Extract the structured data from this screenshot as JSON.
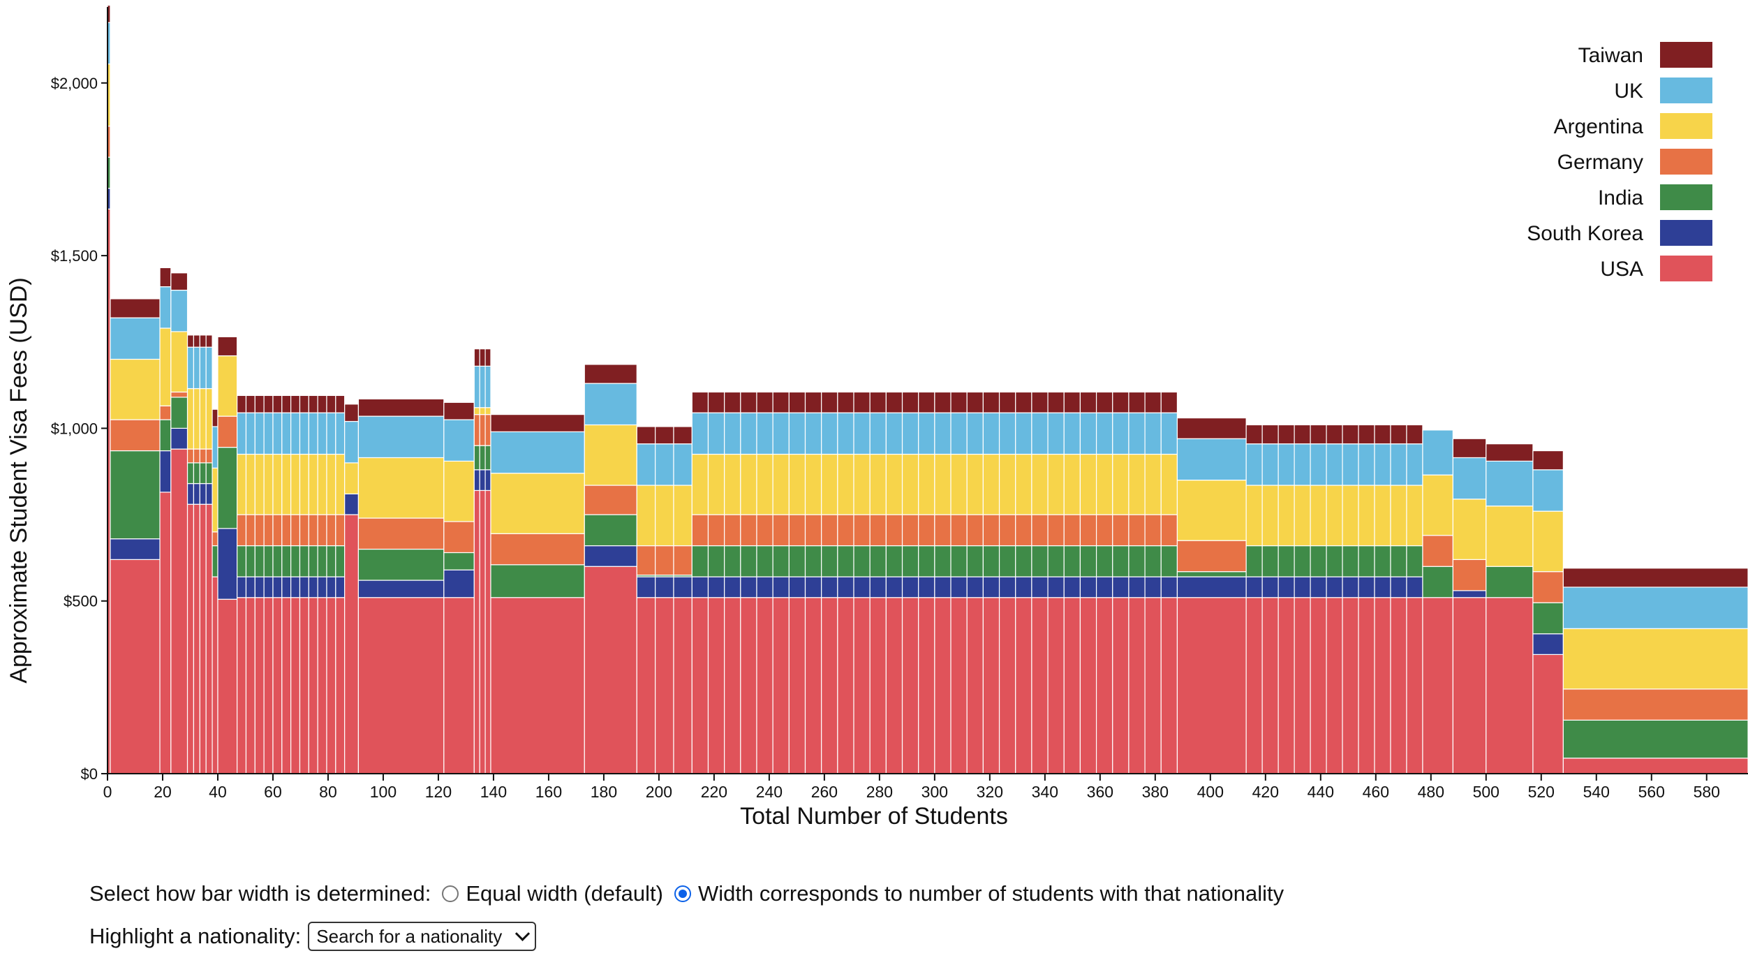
{
  "chart_data": {
    "type": "bar",
    "stacked": true,
    "variable_width": true,
    "xlabel": "Total Number of Students",
    "ylabel": "Approximate Student Visa Fees (USD)",
    "xlim": [
      0,
      595
    ],
    "ylim": [
      0,
      2220
    ],
    "xticks": [
      0,
      20,
      40,
      60,
      80,
      100,
      120,
      140,
      160,
      180,
      200,
      220,
      240,
      260,
      280,
      300,
      320,
      340,
      360,
      380,
      400,
      420,
      440,
      460,
      480,
      500,
      520,
      540,
      560,
      580
    ],
    "yticks": [
      0,
      500,
      1000,
      1500,
      2000
    ],
    "ytick_labels": [
      "$0",
      "$500",
      "$1,000",
      "$1,500",
      "$2,000"
    ],
    "legend_position": "top-right",
    "series_order": [
      "USA",
      "South Korea",
      "India",
      "Germany",
      "Argentina",
      "UK",
      "Taiwan"
    ],
    "colors": {
      "USA": "#e0535a",
      "South Korea": "#2e3f96",
      "India": "#3f8b48",
      "Germany": "#e77245",
      "Argentina": "#f7d44a",
      "UK": "#67bae0",
      "Taiwan": "#801f22"
    },
    "groups": [
      {
        "x0": 0,
        "x1": 1,
        "count": 1,
        "values": [
          1635,
          60,
          90,
          90,
          180,
          120,
          50
        ]
      },
      {
        "x0": 1,
        "x1": 19,
        "count": 1,
        "values": [
          620,
          60,
          255,
          90,
          175,
          120,
          55
        ]
      },
      {
        "x0": 19,
        "x1": 23,
        "count": 1,
        "values": [
          815,
          120,
          90,
          40,
          225,
          120,
          55
        ]
      },
      {
        "x0": 23,
        "x1": 29,
        "count": 1,
        "values": [
          940,
          60,
          90,
          15,
          175,
          120,
          50
        ]
      },
      {
        "x0": 29,
        "x1": 38,
        "count": 4,
        "values": [
          780,
          60,
          60,
          40,
          175,
          120,
          35
        ]
      },
      {
        "x0": 38,
        "x1": 40,
        "count": 1,
        "values": [
          570,
          0,
          90,
          40,
          185,
          120,
          50
        ]
      },
      {
        "x0": 40,
        "x1": 47,
        "count": 1,
        "values": [
          505,
          205,
          235,
          90,
          175,
          0,
          55
        ]
      },
      {
        "x0": 47,
        "x1": 86,
        "count": 12,
        "values": [
          510,
          60,
          90,
          90,
          175,
          120,
          50
        ]
      },
      {
        "x0": 86,
        "x1": 91,
        "count": 1,
        "values": [
          750,
          60,
          0,
          0,
          90,
          120,
          50
        ]
      },
      {
        "x0": 91,
        "x1": 122,
        "count": 1,
        "values": [
          510,
          50,
          90,
          90,
          175,
          120,
          50
        ]
      },
      {
        "x0": 122,
        "x1": 133,
        "count": 1,
        "values": [
          510,
          80,
          50,
          90,
          175,
          120,
          50
        ]
      },
      {
        "x0": 133,
        "x1": 139,
        "count": 3,
        "values": [
          820,
          60,
          70,
          90,
          20,
          120,
          50
        ]
      },
      {
        "x0": 139,
        "x1": 173,
        "count": 1,
        "values": [
          510,
          0,
          95,
          90,
          175,
          120,
          50
        ]
      },
      {
        "x0": 173,
        "x1": 192,
        "count": 1,
        "values": [
          600,
          60,
          90,
          85,
          175,
          120,
          55
        ]
      },
      {
        "x0": 192,
        "x1": 212,
        "count": 3,
        "values": [
          510,
          60,
          5,
          85,
          175,
          120,
          50
        ]
      },
      {
        "x0": 212,
        "x1": 388,
        "count": 30,
        "values": [
          510,
          60,
          90,
          90,
          175,
          120,
          60
        ]
      },
      {
        "x0": 388,
        "x1": 413,
        "count": 1,
        "values": [
          510,
          60,
          15,
          90,
          175,
          120,
          60
        ]
      },
      {
        "x0": 413,
        "x1": 477,
        "count": 11,
        "values": [
          510,
          60,
          90,
          0,
          175,
          120,
          55
        ]
      },
      {
        "x0": 477,
        "x1": 488,
        "count": 1,
        "values": [
          510,
          0,
          90,
          90,
          175,
          130,
          0
        ]
      },
      {
        "x0": 488,
        "x1": 500,
        "count": 1,
        "values": [
          510,
          20,
          0,
          90,
          175,
          120,
          55
        ]
      },
      {
        "x0": 500,
        "x1": 517,
        "count": 1,
        "values": [
          510,
          0,
          90,
          0,
          175,
          130,
          50
        ]
      },
      {
        "x0": 517,
        "x1": 528,
        "count": 1,
        "values": [
          345,
          60,
          90,
          90,
          175,
          120,
          55
        ]
      },
      {
        "x0": 528,
        "x1": 595,
        "count": 1,
        "values": [
          45,
          0,
          110,
          90,
          175,
          120,
          55
        ]
      }
    ]
  },
  "controls": {
    "width_label": "Select how bar width is determined:",
    "option_equal": "Equal width (default)",
    "option_proportional": "Width corresponds to number of students with that nationality",
    "selected_option": "proportional",
    "highlight_label": "Highlight a nationality:",
    "highlight_select_value": "Search for a nationality"
  }
}
